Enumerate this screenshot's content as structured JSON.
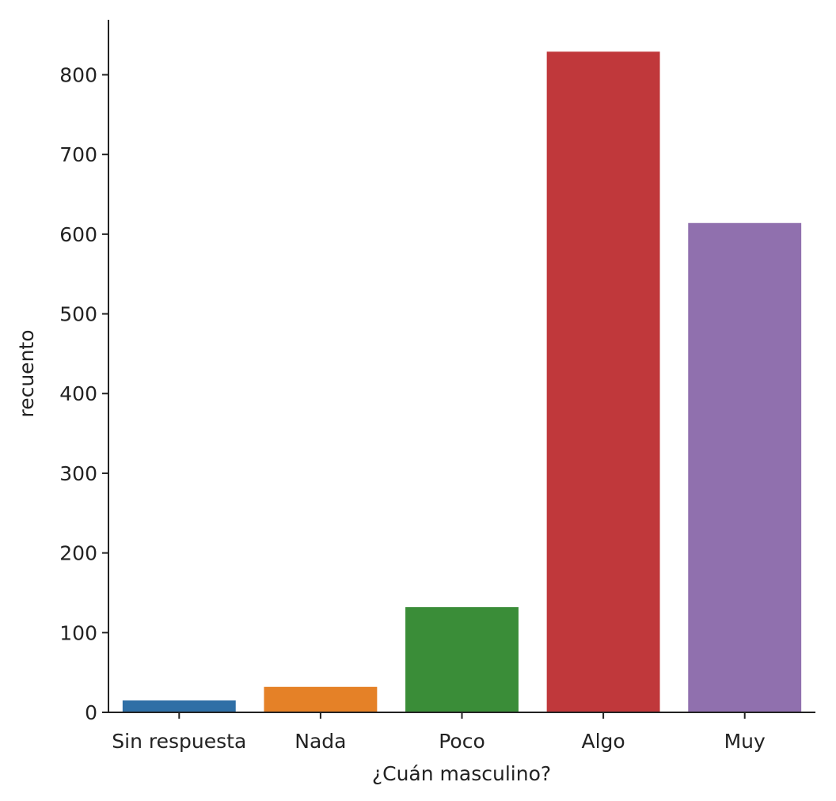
{
  "chart_data": {
    "type": "bar",
    "title": "",
    "xlabel": "¿Cuán masculino?",
    "ylabel": "recuento",
    "categories": [
      "Sin respuesta",
      "Nada",
      "Poco",
      "Algo",
      "Muy"
    ],
    "values": [
      15,
      32,
      132,
      829,
      614
    ],
    "colors": [
      "#2f6fa6",
      "#e58127",
      "#3a8d38",
      "#c0383b",
      "#9070ae"
    ],
    "ylim": [
      0,
      869
    ],
    "yticks": [
      0,
      100,
      200,
      300,
      400,
      500,
      600,
      700,
      800
    ],
    "grid": false,
    "legend": "none"
  }
}
